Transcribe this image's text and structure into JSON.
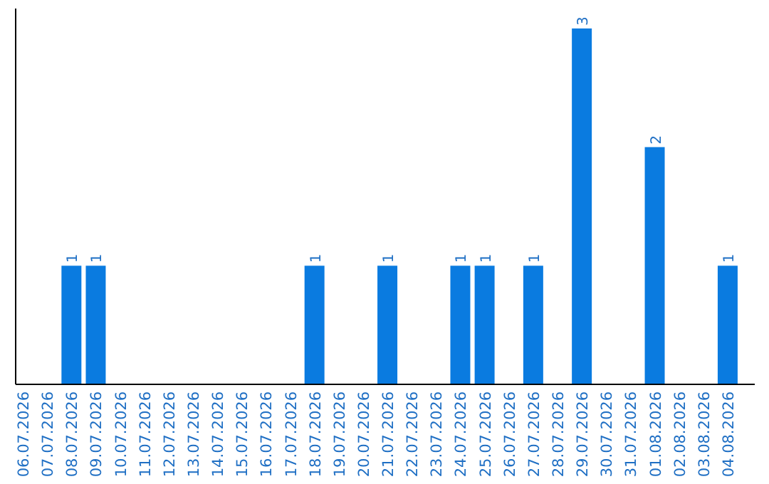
{
  "chart_data": {
    "type": "bar",
    "categories": [
      "06.07.2026",
      "07.07.2026",
      "08.07.2026",
      "09.07.2026",
      "10.07.2026",
      "11.07.2026",
      "12.07.2026",
      "13.07.2026",
      "14.07.2026",
      "15.07.2026",
      "16.07.2026",
      "17.07.2026",
      "18.07.2026",
      "19.07.2026",
      "20.07.2026",
      "21.07.2026",
      "22.07.2026",
      "23.07.2026",
      "24.07.2026",
      "25.07.2026",
      "26.07.2026",
      "27.07.2026",
      "28.07.2026",
      "29.07.2026",
      "30.07.2026",
      "31.07.2026",
      "01.08.2026",
      "02.08.2026",
      "03.08.2026",
      "04.08.2026"
    ],
    "values": [
      0,
      0,
      1,
      1,
      0,
      0,
      0,
      0,
      0,
      0,
      0,
      0,
      1,
      0,
      0,
      1,
      0,
      0,
      1,
      1,
      0,
      1,
      0,
      3,
      0,
      0,
      2,
      0,
      0,
      1
    ],
    "value_labels": [
      null,
      null,
      "1",
      "1",
      null,
      null,
      null,
      null,
      null,
      null,
      null,
      null,
      "1",
      null,
      null,
      "1",
      null,
      null,
      "1",
      "1",
      null,
      "1",
      null,
      "3",
      null,
      null,
      "2",
      null,
      null,
      "1"
    ],
    "color": "#0a7be0",
    "tick_labels": "x"
  }
}
